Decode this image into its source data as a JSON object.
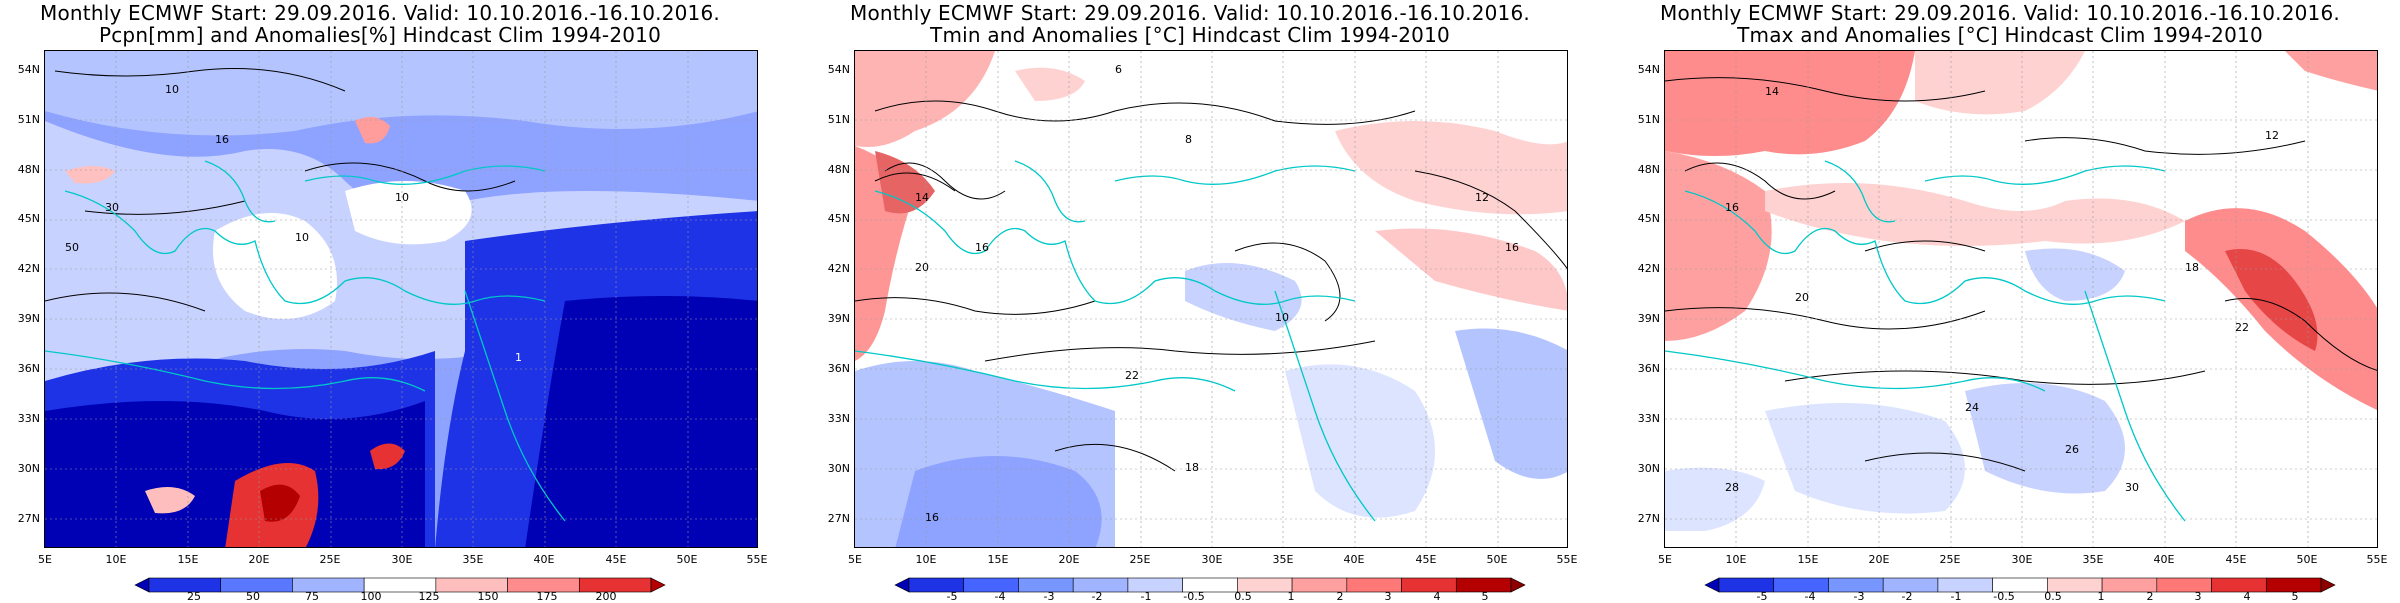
{
  "panels": [
    {
      "title_line1": "Monthly ECMWF Start: 29.09.2016. Valid: 10.10.2016.-16.10.2016.",
      "title_line2": "Pcpn[mm] and Anomalies[%] Hindcast Clim 1994-2010",
      "lat_labels": [
        "54N",
        "51N",
        "48N",
        "45N",
        "42N",
        "39N",
        "36N",
        "33N",
        "30N",
        "27N"
      ],
      "lon_labels": [
        "5E",
        "10E",
        "15E",
        "20E",
        "25E",
        "30E",
        "35E",
        "40E",
        "45E",
        "50E",
        "55E"
      ],
      "colorbar_ticks": [
        "25",
        "50",
        "75",
        "100",
        "125",
        "150",
        "175",
        "200"
      ],
      "colorbar_colors": [
        "#0000b4",
        "#1e32e6",
        "#5a78ff",
        "#a0b4ff",
        "#ffffff",
        "#ffbebe",
        "#ff8c8c",
        "#e63232",
        "#b40000"
      ],
      "contour_labels": [
        "10",
        "16",
        "30",
        "50",
        "1",
        "10",
        "10"
      ]
    },
    {
      "title_line1": "Monthly ECMWF Start: 29.09.2016. Valid: 10.10.2016.-16.10.2016.",
      "title_line2": "Tmin and Anomalies [°C] Hindcast Clim 1994-2010",
      "lat_labels": [
        "54N",
        "51N",
        "48N",
        "45N",
        "42N",
        "39N",
        "36N",
        "33N",
        "30N",
        "27N"
      ],
      "lon_labels": [
        "5E",
        "10E",
        "15E",
        "20E",
        "25E",
        "30E",
        "35E",
        "40E",
        "45E",
        "50E",
        "55E"
      ],
      "colorbar_ticks": [
        "-5",
        "-4",
        "-3",
        "-2",
        "-1",
        "-0.5",
        "0.5",
        "1",
        "2",
        "3",
        "4",
        "5"
      ],
      "colorbar_colors": [
        "#0000b4",
        "#1e32e6",
        "#4664ff",
        "#7896ff",
        "#a0b4ff",
        "#c8d2ff",
        "#ffffff",
        "#ffd2d2",
        "#ffa0a0",
        "#ff7878",
        "#e63232",
        "#b40000",
        "#8c0000"
      ],
      "contour_labels": [
        "6",
        "8",
        "14",
        "16",
        "20",
        "22",
        "18",
        "10",
        "12",
        "16",
        "16"
      ]
    },
    {
      "title_line1": "Monthly ECMWF Start: 29.09.2016. Valid: 10.10.2016.-16.10.2016.",
      "title_line2": "Tmax and Anomalies [°C] Hindcast Clim 1994-2010",
      "lat_labels": [
        "54N",
        "51N",
        "48N",
        "45N",
        "42N",
        "39N",
        "36N",
        "33N",
        "30N",
        "27N"
      ],
      "lon_labels": [
        "5E",
        "10E",
        "15E",
        "20E",
        "25E",
        "30E",
        "35E",
        "40E",
        "45E",
        "50E",
        "55E"
      ],
      "colorbar_ticks": [
        "-5",
        "-4",
        "-3",
        "-2",
        "-1",
        "-0.5",
        "0.5",
        "1",
        "2",
        "3",
        "4",
        "5"
      ],
      "colorbar_colors": [
        "#0000b4",
        "#1e32e6",
        "#4664ff",
        "#7896ff",
        "#a0b4ff",
        "#c8d2ff",
        "#ffffff",
        "#ffd2d2",
        "#ffa0a0",
        "#ff7878",
        "#e63232",
        "#b40000",
        "#8c0000"
      ],
      "contour_labels": [
        "14",
        "12",
        "16",
        "18",
        "20",
        "22",
        "24",
        "26",
        "28",
        "30"
      ]
    }
  ]
}
